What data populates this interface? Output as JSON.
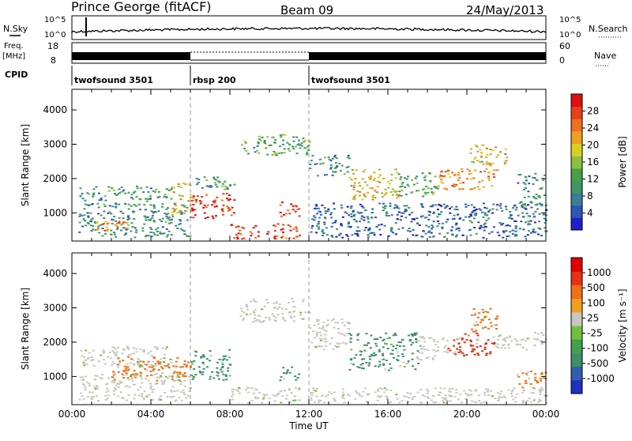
{
  "header": {
    "station": "Prince George (fitACF)",
    "beam": "Beam 09",
    "date": "24/May/2013"
  },
  "strips": {
    "nsky_label": "N.Sky",
    "nsearch_label": "N.Search",
    "freq_label_1": "Freq.",
    "freq_label_2": "[MHz]",
    "nave_label": "Nave",
    "cpid_label": "CPID",
    "log_top_left": "10^5",
    "log_bottom_left": "10^0",
    "log_top_right": "10^5",
    "log_bottom_right": "10^0",
    "freq_ticks": [
      "18",
      "8"
    ],
    "nave_ticks": [
      "60",
      "0"
    ],
    "modes": [
      {
        "name": "twofsound 3501",
        "start": 0,
        "end": 6
      },
      {
        "name": "rbsp 200",
        "start": 6,
        "end": 12
      },
      {
        "name": "twofsound 3501",
        "start": 12,
        "end": 24
      }
    ]
  },
  "chart_data": [
    {
      "type": "heatmap",
      "title": "Power",
      "ylabel": "Slant Range [km]",
      "ylim": [
        180,
        4600
      ],
      "xlim": [
        0,
        24
      ],
      "y_ticks": [
        1000,
        2000,
        3000,
        4000
      ],
      "colorbar": {
        "label": "Power [dB]",
        "ticks": [
          "28",
          "24",
          "20",
          "16",
          "12",
          "8",
          "4"
        ],
        "range": [
          0,
          30
        ],
        "colors": [
          "#2020c8",
          "#2f55b5",
          "#3a7f9a",
          "#3f9565",
          "#4aa04a",
          "#8ac040",
          "#d8d020",
          "#f0a020",
          "#f07020",
          "#e84018",
          "#e01010"
        ]
      },
      "mode_boundaries_ut": [
        6,
        12
      ],
      "echo_regions": [
        {
          "start": 0.3,
          "end": 6.0,
          "rmin": 300,
          "rmax": 1300,
          "level": 9
        },
        {
          "start": 0.3,
          "end": 5.0,
          "rmin": 1350,
          "rmax": 1800,
          "level": 10
        },
        {
          "start": 1.0,
          "end": 3.0,
          "rmin": 500,
          "rmax": 800,
          "level": 22
        },
        {
          "start": 5.0,
          "end": 6.0,
          "rmin": 900,
          "rmax": 1900,
          "level": 19
        },
        {
          "start": 6.0,
          "end": 8.2,
          "rmin": 850,
          "rmax": 1600,
          "level": 27
        },
        {
          "start": 6.0,
          "end": 8.2,
          "rmin": 1700,
          "rmax": 2100,
          "level": 11
        },
        {
          "start": 8.0,
          "end": 11.5,
          "rmin": 250,
          "rmax": 700,
          "level": 26
        },
        {
          "start": 10.5,
          "end": 11.6,
          "rmin": 900,
          "rmax": 1400,
          "level": 27
        },
        {
          "start": 8.5,
          "end": 12.0,
          "rmin": 2700,
          "rmax": 3300,
          "level": 12
        },
        {
          "start": 12.0,
          "end": 14.0,
          "rmin": 2100,
          "rmax": 2700,
          "level": 9
        },
        {
          "start": 12.0,
          "end": 24.0,
          "rmin": 300,
          "rmax": 1300,
          "level": 6
        },
        {
          "start": 14.0,
          "end": 16.5,
          "rmin": 1400,
          "rmax": 2300,
          "level": 19
        },
        {
          "start": 16.5,
          "end": 18.5,
          "rmin": 1500,
          "rmax": 2200,
          "level": 12
        },
        {
          "start": 18.5,
          "end": 21.5,
          "rmin": 1700,
          "rmax": 2300,
          "level": 22
        },
        {
          "start": 20.0,
          "end": 22.0,
          "rmin": 2400,
          "rmax": 3000,
          "level": 18
        },
        {
          "start": 22.5,
          "end": 24.0,
          "rmin": 1200,
          "rmax": 2200,
          "level": 9
        }
      ]
    },
    {
      "type": "heatmap",
      "title": "Velocity",
      "ylabel": "Slant Range [km]",
      "xlabel": "Time UT",
      "ylim": [
        180,
        4600
      ],
      "xlim": [
        0,
        24
      ],
      "y_ticks": [
        1000,
        2000,
        3000,
        4000
      ],
      "x_ticks": [
        "00:00",
        "04:00",
        "08:00",
        "12:00",
        "16:00",
        "20:00",
        "00:00"
      ],
      "colorbar": {
        "label": "Velocity [m s⁻¹]",
        "ticks": [
          "1000",
          "500",
          "100",
          "25",
          "-25",
          "-100",
          "-500",
          "-1000"
        ],
        "colors": [
          "#2030c0",
          "#305fb0",
          "#3f8f6a",
          "#40a050",
          "#70c040",
          "#c8c8c0",
          "#f0a020",
          "#f07018",
          "#e83015",
          "#e00000"
        ]
      },
      "mode_boundaries_ut": [
        6,
        12
      ],
      "echo_regions": [
        {
          "start": 0.3,
          "end": 6.0,
          "rmin": 300,
          "rmax": 1100,
          "color": "#c8c8c0"
        },
        {
          "start": 0.3,
          "end": 5.0,
          "rmin": 1300,
          "rmax": 1900,
          "color": "#c8c8c0"
        },
        {
          "start": 2.0,
          "end": 6.0,
          "rmin": 900,
          "rmax": 1600,
          "color": "#f07018"
        },
        {
          "start": 6.0,
          "end": 8.0,
          "rmin": 900,
          "rmax": 1800,
          "color": "#3f8f6a"
        },
        {
          "start": 8.5,
          "end": 12.0,
          "rmin": 2600,
          "rmax": 3300,
          "color": "#c8c8c0"
        },
        {
          "start": 8.0,
          "end": 11.5,
          "rmin": 250,
          "rmax": 700,
          "color": "#c8c8c0"
        },
        {
          "start": 10.5,
          "end": 11.5,
          "rmin": 900,
          "rmax": 1300,
          "color": "#3f8f6a"
        },
        {
          "start": 12.0,
          "end": 14.0,
          "rmin": 1800,
          "rmax": 2700,
          "color": "#c8c8c0"
        },
        {
          "start": 14.0,
          "end": 17.5,
          "rmin": 1200,
          "rmax": 2300,
          "color": "#3f8f6a"
        },
        {
          "start": 17.5,
          "end": 19.0,
          "rmin": 1500,
          "rmax": 2200,
          "color": "#c8c8c0"
        },
        {
          "start": 19.0,
          "end": 21.5,
          "rmin": 1600,
          "rmax": 2300,
          "color": "#e83015"
        },
        {
          "start": 20.0,
          "end": 21.5,
          "rmin": 2300,
          "rmax": 3000,
          "color": "#f07018"
        },
        {
          "start": 21.5,
          "end": 24.0,
          "rmin": 1800,
          "rmax": 2300,
          "color": "#c8c8c0"
        },
        {
          "start": 22.5,
          "end": 24.0,
          "rmin": 600,
          "rmax": 1200,
          "color": "#f07018"
        },
        {
          "start": 12.0,
          "end": 24.0,
          "rmin": 250,
          "rmax": 700,
          "color": "#c8c8c0"
        }
      ]
    }
  ]
}
